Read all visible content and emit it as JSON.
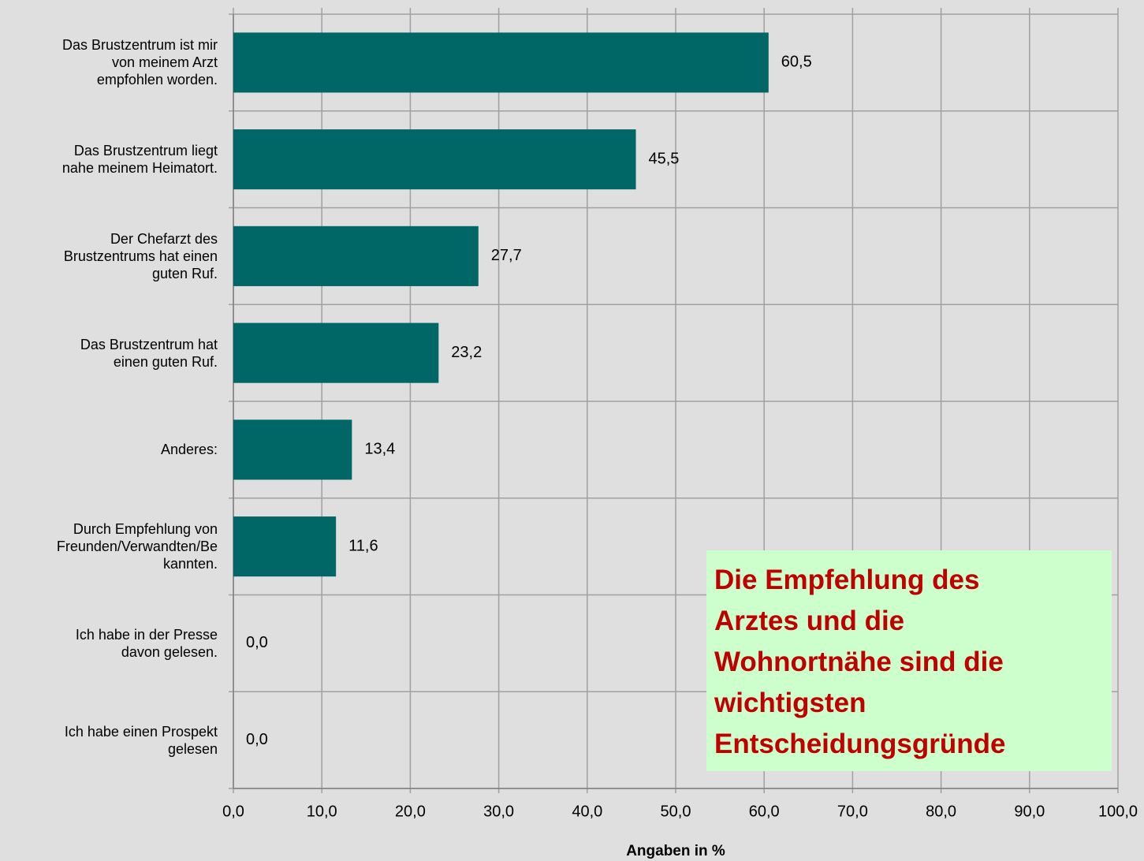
{
  "chart_data": {
    "type": "barh",
    "categories": [
      "Das Brustzentrum ist mir\nvon meinem Arzt\nempfohlen worden.",
      "Das Brustzentrum liegt\nnahe meinem Heimatort.",
      "Der Chefarzt des\nBrustzentrums hat einen\nguten Ruf.",
      "Das Brustzentrum hat\neinen guten Ruf.",
      "Anderes:",
      "Durch Empfehlung von\nFreunden/Verwandten/Be\nkannten.",
      "Ich habe in der Presse\ndavon gelesen.",
      "Ich habe einen Prospekt\ngelesen"
    ],
    "values": [
      60.5,
      45.5,
      27.7,
      23.2,
      13.4,
      11.6,
      0,
      0
    ],
    "value_labels": [
      "60,5",
      "45,5",
      "27,7",
      "23,2",
      "13,4",
      "11,6",
      "0,0",
      "0,0"
    ],
    "color": "#006666",
    "xlim": [
      0,
      100
    ],
    "xticks": [
      {
        "value": 0,
        "label": "0,0"
      },
      {
        "value": 10,
        "label": "10,0"
      },
      {
        "value": 20,
        "label": "20,0"
      },
      {
        "value": 30,
        "label": "30,0"
      },
      {
        "value": 40,
        "label": "40,0"
      },
      {
        "value": 50,
        "label": "50,0"
      },
      {
        "value": 60,
        "label": "60,0"
      },
      {
        "value": 70,
        "label": "70,0"
      },
      {
        "value": 80,
        "label": "80,0"
      },
      {
        "value": 90,
        "label": "90,0"
      },
      {
        "value": 100,
        "label": "100,0"
      }
    ],
    "xlabel": "Angaben in %",
    "annotation": "Die Empfehlung des\nArztes und die\nWohnortnähe sind die\nwichtigsten\nEntscheidungsgründe",
    "grid": true
  }
}
